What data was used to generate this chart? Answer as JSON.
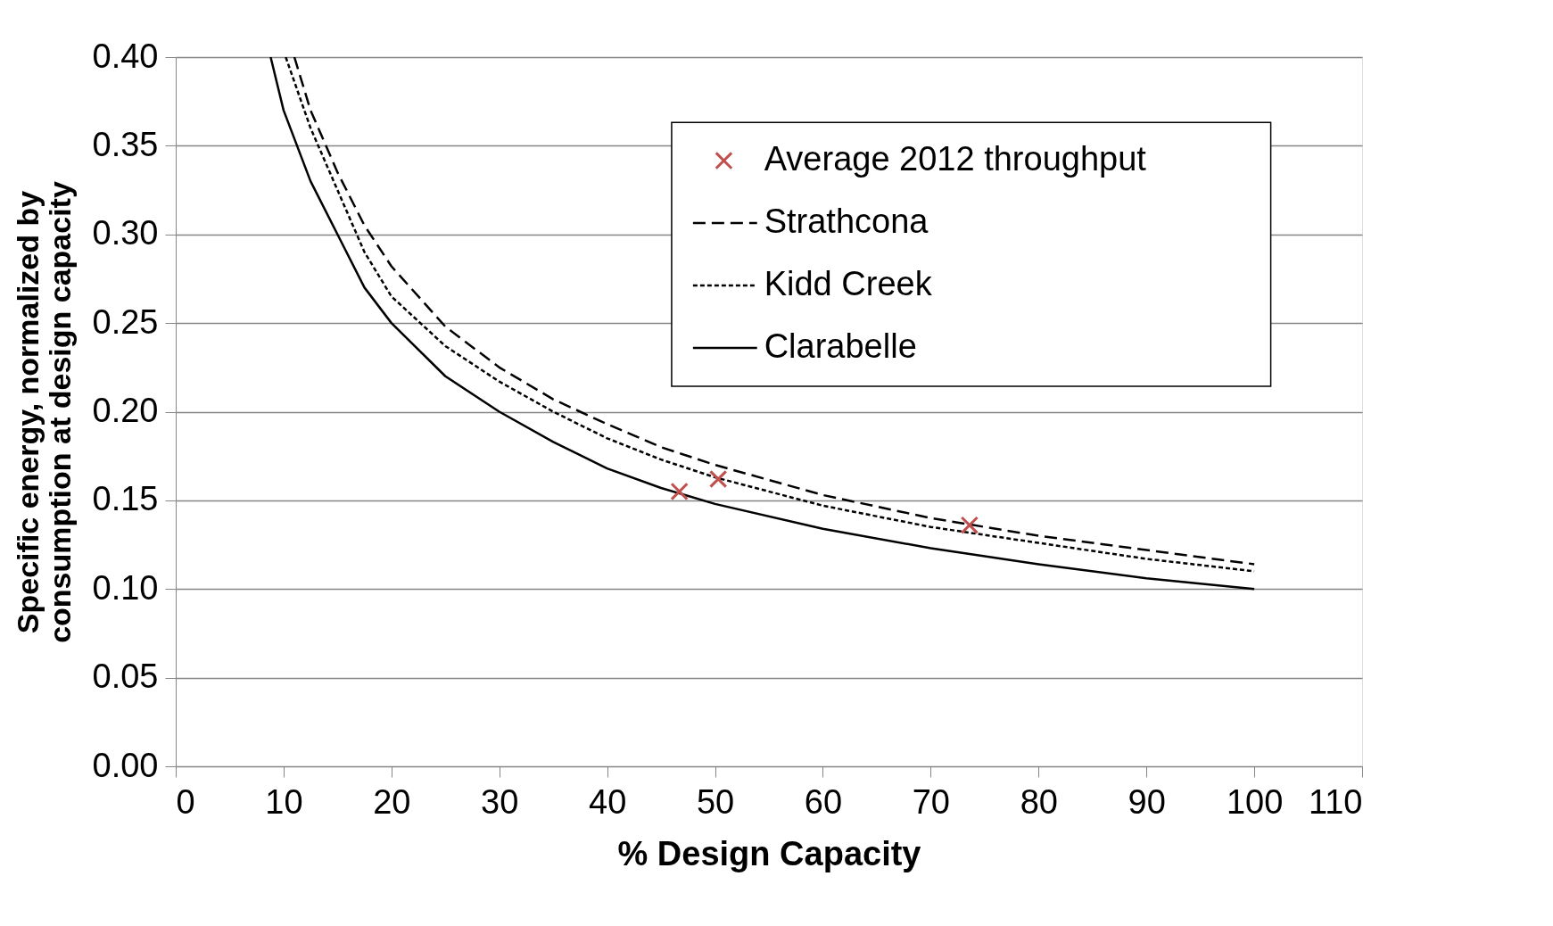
{
  "chart_data": {
    "type": "line",
    "xlabel": "% Design Capacity",
    "ylabel": "Specific energy, normalized by consumption at design capacity",
    "xlim": [
      0,
      110
    ],
    "xticks": [
      0,
      10,
      20,
      30,
      40,
      50,
      60,
      70,
      80,
      90,
      100,
      110
    ],
    "ylim": [
      0,
      0.4
    ],
    "yticks": [
      {
        "value": 0,
        "label": "0.00"
      },
      {
        "value": 0.05,
        "label": "0.05"
      },
      {
        "value": 0.1,
        "label": "0.10"
      },
      {
        "value": 0.15,
        "label": "0.15"
      },
      {
        "value": 0.2,
        "label": "0.20"
      },
      {
        "value": 0.25,
        "label": "0.25"
      },
      {
        "value": 0.3,
        "label": "0.30"
      },
      {
        "value": 0.35,
        "label": "0.35"
      },
      {
        "value": 0.4,
        "label": "0.40"
      }
    ],
    "grid": "y",
    "legend": "top right",
    "series": [
      {
        "name": "Average 2012 throughput",
        "type": "scatter",
        "marker": "cross",
        "color": "#c0504d",
        "x": [
          46.7,
          50.3,
          73.6
        ],
        "values": [
          0.155,
          0.162,
          0.136
        ]
      },
      {
        "name": "Strathcona",
        "line_style": "dashed",
        "color": "#000000",
        "x": [
          11,
          12.5,
          15,
          17.5,
          20,
          25,
          30,
          35,
          40,
          45,
          50,
          60,
          70,
          80,
          90,
          100
        ],
        "values": [
          0.4,
          0.37,
          0.335,
          0.305,
          0.282,
          0.248,
          0.225,
          0.207,
          0.193,
          0.18,
          0.17,
          0.153,
          0.14,
          0.13,
          0.122,
          0.114
        ]
      },
      {
        "name": "Kidd Creek",
        "line_style": "dotted",
        "color": "#000000",
        "x": [
          10.2,
          12.5,
          15,
          17.5,
          20,
          25,
          30,
          35,
          40,
          45,
          50,
          60,
          70,
          80,
          90,
          100
        ],
        "values": [
          0.4,
          0.36,
          0.325,
          0.29,
          0.265,
          0.237,
          0.217,
          0.2,
          0.185,
          0.173,
          0.163,
          0.147,
          0.135,
          0.126,
          0.117,
          0.11
        ]
      },
      {
        "name": "Clarabelle",
        "line_style": "solid",
        "color": "#000000",
        "x": [
          8.8,
          10,
          12.5,
          15,
          17.5,
          20,
          25,
          30,
          35,
          40,
          45,
          50,
          60,
          70,
          80,
          90,
          100
        ],
        "values": [
          0.4,
          0.37,
          0.33,
          0.3,
          0.27,
          0.25,
          0.22,
          0.2,
          0.183,
          0.168,
          0.157,
          0.148,
          0.134,
          0.123,
          0.114,
          0.106,
          0.1
        ]
      }
    ]
  }
}
